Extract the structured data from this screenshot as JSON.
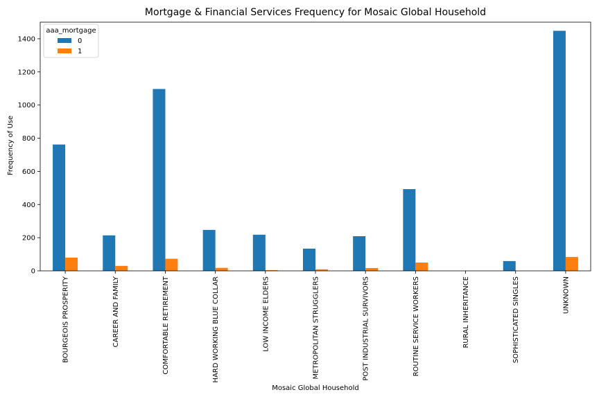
{
  "chart_data": {
    "type": "bar",
    "title": "Mortgage & Financial Services Frequency for Mosaic Global Household",
    "xlabel": "Mosaic Global Household",
    "ylabel": "Frequency of Use",
    "ylim": [
      0,
      1500
    ],
    "yticks": [
      0,
      200,
      400,
      600,
      800,
      1000,
      1200,
      1400
    ],
    "categories": [
      "BOURGEOIS PROSPERITY",
      "CAREER AND FAMILY",
      "COMFORTABLE RETIREMENT",
      "HARD WORKING BLUE COLLAR",
      "LOW INCOME ELDERS",
      "METROPOLITAN STRUGGLERS",
      "POST INDUSTRIAL SURVIVORS",
      "ROUTINE SERVICE WORKERS",
      "RURAL INHERITANCE",
      "SOPHISTICATED SINGLES",
      "UNKNOWN"
    ],
    "legend": {
      "title": "aaa_mortgage",
      "placement": "top-left"
    },
    "grid": false,
    "series": [
      {
        "name": "0",
        "color": "#1f77b4",
        "values": [
          762,
          214,
          1097,
          247,
          218,
          134,
          209,
          493,
          0,
          59,
          1448
        ]
      },
      {
        "name": "1",
        "color": "#ff7f0e",
        "values": [
          80,
          30,
          73,
          18,
          4,
          9,
          17,
          50,
          0,
          0,
          84
        ]
      }
    ]
  }
}
